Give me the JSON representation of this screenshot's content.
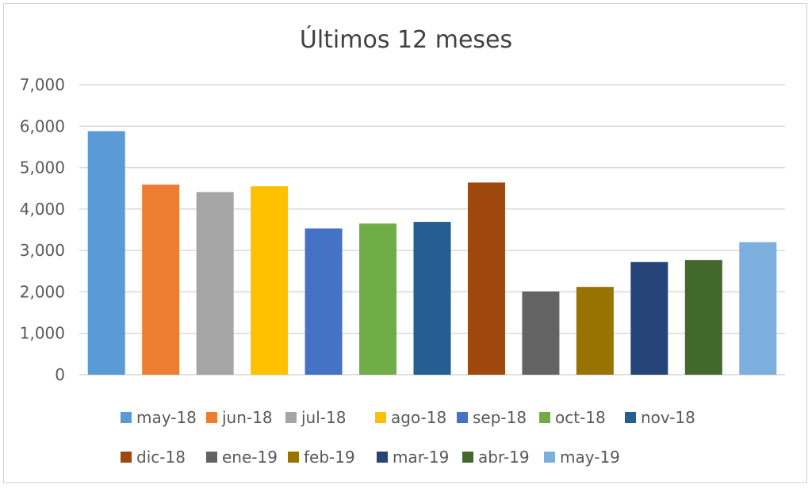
{
  "chart_data": {
    "type": "bar",
    "title": "Últimos 12 meses",
    "xlabel": "",
    "ylabel": "",
    "ylim": [
      0,
      7000
    ],
    "y_ticks": [
      0,
      1000,
      2000,
      3000,
      4000,
      5000,
      6000,
      7000
    ],
    "y_tick_labels": [
      "0",
      "1,000",
      "2,000",
      "3,000",
      "4,000",
      "5,000",
      "6,000",
      "7,000"
    ],
    "grid": true,
    "legend_position": "bottom",
    "categories": [
      "may-18",
      "jun-18",
      "jul-18",
      "ago-18",
      "sep-18",
      "oct-18",
      "nov-18",
      "dic-18",
      "ene-19",
      "feb-19",
      "mar-19",
      "abr-19",
      "may-19"
    ],
    "values": [
      5880,
      4590,
      4410,
      4550,
      3530,
      3650,
      3690,
      4640,
      2010,
      2120,
      2720,
      2770,
      3200
    ],
    "colors": [
      "#5b9bd5",
      "#ed7d31",
      "#a5a5a5",
      "#ffc000",
      "#4472c4",
      "#70ad47",
      "#255e91",
      "#9e480e",
      "#636363",
      "#997300",
      "#264478",
      "#43682b",
      "#7cafdd"
    ],
    "grid_color": "#d9d9d9"
  }
}
